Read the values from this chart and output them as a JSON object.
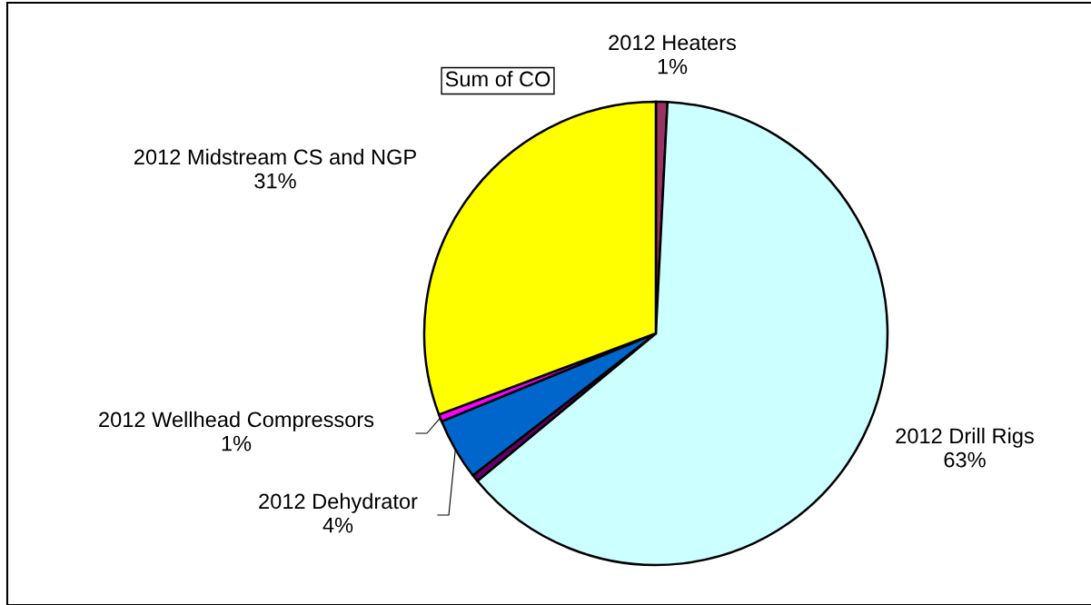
{
  "chart_data": {
    "type": "pie",
    "title": "Sum of CO",
    "categories": [
      "2012 Heaters",
      "2012 Drill Rigs",
      null,
      "2012 Dehydrator",
      "2012 Wellhead Compressors",
      "2012 Midstream CS and NGP"
    ],
    "values": [
      0.8,
      63.2,
      0.5,
      4.3,
      0.5,
      30.7
    ],
    "value_labels": [
      "1%",
      "63%",
      null,
      "4%",
      "1%",
      "31%"
    ],
    "colors": [
      "#993366",
      "#ccffff",
      "#660066",
      "#0066cc",
      "#ff00ff",
      "#ffff00"
    ]
  }
}
